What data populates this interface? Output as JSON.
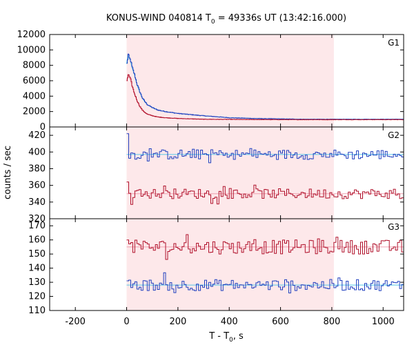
{
  "chart_data": {
    "type": "line",
    "title": "KONUS-WIND 040814 T",
    "title_sub": "0",
    "title_rest": " = 49336s UT (13:42:16.000)",
    "xlabel": "T - T",
    "xlabel_sub": "0",
    "xlabel_rest": ", s",
    "ylabel": "counts / sec",
    "xlim": [
      -300,
      1080
    ],
    "x_ticks": [
      -200,
      0,
      200,
      400,
      600,
      800,
      1000
    ],
    "x_tick_labels": [
      "-200",
      "0",
      "200",
      "400",
      "600",
      "800",
      "1000"
    ],
    "highlight_interval": [
      0,
      808
    ],
    "colors": {
      "blue": "#1f3fbf",
      "red": "#b0102a",
      "fit": "#55c8e8",
      "fit_red": "#f0a0b0",
      "highlight": "#fde8ea"
    },
    "panels": [
      {
        "label": "G1",
        "ylim": [
          0,
          12000
        ],
        "y_ticks": [
          0,
          2000,
          4000,
          6000,
          8000,
          10000,
          12000
        ],
        "y_tick_labels": [
          "0",
          "2000",
          "4000",
          "6000",
          "8000",
          "10000",
          "12000"
        ],
        "series": [
          {
            "color": "blue",
            "x": [
              0,
              5,
              10,
              15,
              20,
              30,
              40,
              50,
              60,
              70,
              80,
              100,
              120,
              150,
              200,
              250,
              300,
              400,
              500,
              600,
              700,
              800,
              900,
              1000,
              1080
            ],
            "y": [
              8200,
              9400,
              8900,
              8600,
              7800,
              6800,
              5500,
              4600,
              3800,
              3300,
              2900,
              2500,
              2200,
              2000,
              1750,
              1600,
              1450,
              1200,
              1100,
              1050,
              1000,
              1000,
              1000,
              1000,
              1000
            ]
          },
          {
            "color": "red",
            "x": [
              0,
              5,
              10,
              15,
              20,
              30,
              40,
              50,
              60,
              70,
              80,
              100,
              120,
              150,
              200,
              250,
              300,
              400,
              500,
              600,
              700,
              800,
              900,
              1000,
              1080
            ],
            "y": [
              6000,
              6800,
              6500,
              6100,
              5400,
              4300,
              3400,
              2700,
              2200,
              1900,
              1650,
              1450,
              1300,
              1200,
              1100,
              1050,
              1000,
              980,
              960,
              950,
              950,
              950,
              950,
              950,
              950
            ]
          }
        ]
      },
      {
        "label": "G2",
        "ylim": [
          320,
          430
        ],
        "y_ticks": [
          320,
          340,
          360,
          380,
          400,
          420
        ],
        "y_tick_labels": [
          "320",
          "340",
          "360",
          "380",
          "400",
          "420"
        ],
        "series": [
          {
            "color": "blue",
            "mean": 397,
            "start": 422,
            "amp": 6
          },
          {
            "color": "red",
            "mean": 350,
            "start": 364,
            "amp": 6
          }
        ]
      },
      {
        "label": "G3",
        "ylim": [
          110,
          175
        ],
        "y_ticks": [
          110,
          120,
          130,
          140,
          150,
          160,
          170
        ],
        "y_tick_labels": [
          "110",
          "120",
          "130",
          "140",
          "150",
          "160",
          "170"
        ],
        "series": [
          {
            "color": "red",
            "mean": 155,
            "start": 160,
            "amp": 5
          },
          {
            "color": "blue",
            "mean": 128,
            "start": 131,
            "amp": 4
          }
        ]
      }
    ]
  }
}
